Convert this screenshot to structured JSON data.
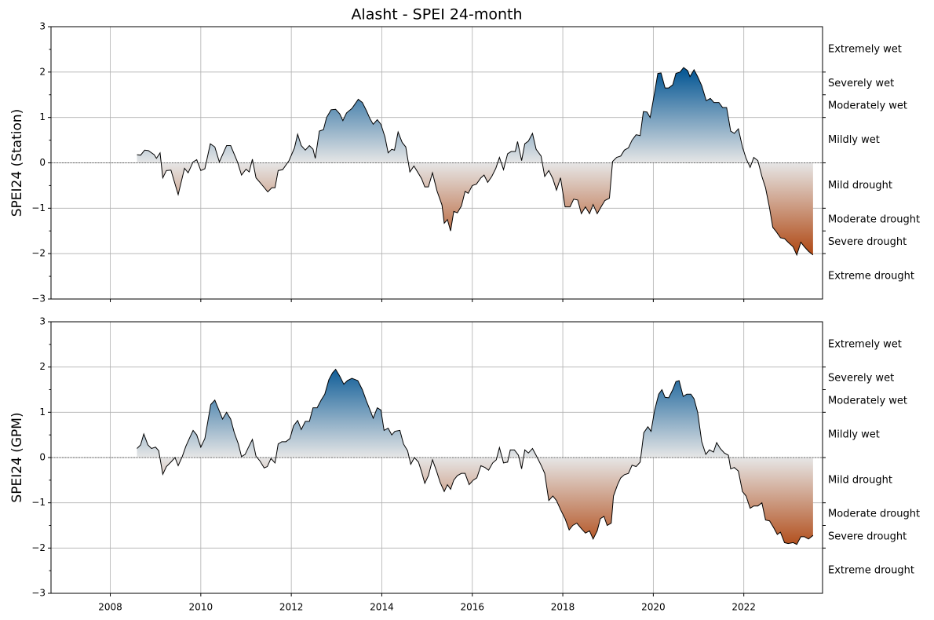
{
  "chart_data": [
    {
      "type": "area",
      "title": "Alasht - SPEI 24-month",
      "ylabel": "SPEI24 (Station)",
      "x": [
        2008.59,
        2008.67,
        2008.76,
        2008.84,
        2008.97,
        2009.02,
        2009.1,
        2009.16,
        2009.24,
        2009.34,
        2009.5,
        2009.64,
        2009.72,
        2009.83,
        2009.91,
        2010.0,
        2010.09,
        2010.21,
        2010.31,
        2010.41,
        2010.57,
        2010.66,
        2010.81,
        2010.9,
        2011.0,
        2011.07,
        2011.14,
        2011.22,
        2011.34,
        2011.48,
        2011.57,
        2011.64,
        2011.71,
        2011.81,
        2011.95,
        2012.07,
        2012.14,
        2012.22,
        2012.31,
        2012.4,
        2012.48,
        2012.53,
        2012.62,
        2012.71,
        2012.78,
        2012.88,
        2012.98,
        2013.07,
        2013.14,
        2013.22,
        2013.34,
        2013.48,
        2013.57,
        2013.66,
        2013.74,
        2013.81,
        2013.9,
        2013.98,
        2014.07,
        2014.14,
        2014.22,
        2014.28,
        2014.36,
        2014.45,
        2014.53,
        2014.62,
        2014.71,
        2014.79,
        2014.88,
        2014.95,
        2015.03,
        2015.12,
        2015.22,
        2015.33,
        2015.38,
        2015.45,
        2015.52,
        2015.59,
        2015.67,
        2015.76,
        2015.84,
        2015.91,
        2016.0,
        2016.09,
        2016.19,
        2016.26,
        2016.34,
        2016.43,
        2016.52,
        2016.6,
        2016.69,
        2016.78,
        2016.86,
        2016.95,
        2017.0,
        2017.09,
        2017.16,
        2017.24,
        2017.33,
        2017.41,
        2017.52,
        2017.6,
        2017.69,
        2017.78,
        2017.86,
        2017.95,
        2018.05,
        2018.16,
        2018.24,
        2018.33,
        2018.41,
        2018.5,
        2018.59,
        2018.67,
        2018.76,
        2018.84,
        2018.93,
        2019.03,
        2019.1,
        2019.19,
        2019.28,
        2019.36,
        2019.45,
        2019.53,
        2019.62,
        2019.71,
        2019.78,
        2019.86,
        2019.93,
        2020.02,
        2020.1,
        2020.17,
        2020.26,
        2020.34,
        2020.43,
        2020.5,
        2020.59,
        2020.67,
        2020.76,
        2020.81,
        2020.9,
        2020.98,
        2021.07,
        2021.17,
        2021.26,
        2021.34,
        2021.45,
        2021.53,
        2021.62,
        2021.71,
        2021.79,
        2021.88,
        2021.97,
        2022.05,
        2022.14,
        2022.22,
        2022.31,
        2022.4,
        2022.48,
        2022.57,
        2022.64,
        2022.72,
        2022.81,
        2022.9,
        2022.98,
        2023.09,
        2023.17,
        2023.26,
        2023.34,
        2023.43,
        2023.53
      ],
      "values": [
        0.18,
        0.17,
        0.28,
        0.27,
        0.18,
        0.1,
        0.22,
        -0.33,
        -0.17,
        -0.16,
        -0.7,
        -0.12,
        -0.22,
        0.02,
        0.07,
        -0.17,
        -0.13,
        0.42,
        0.35,
        0.02,
        0.38,
        0.38,
        0.02,
        -0.27,
        -0.14,
        -0.2,
        0.08,
        -0.33,
        -0.47,
        -0.64,
        -0.55,
        -0.55,
        -0.17,
        -0.15,
        0.05,
        0.33,
        0.63,
        0.38,
        0.28,
        0.38,
        0.3,
        0.1,
        0.7,
        0.73,
        1.0,
        1.17,
        1.18,
        1.08,
        0.93,
        1.1,
        1.2,
        1.4,
        1.33,
        1.15,
        0.97,
        0.85,
        0.95,
        0.85,
        0.57,
        0.22,
        0.3,
        0.28,
        0.68,
        0.45,
        0.35,
        -0.2,
        -0.07,
        -0.2,
        -0.35,
        -0.53,
        -0.53,
        -0.22,
        -0.62,
        -0.93,
        -1.33,
        -1.25,
        -1.5,
        -1.07,
        -1.1,
        -0.95,
        -0.63,
        -0.67,
        -0.5,
        -0.47,
        -0.33,
        -0.27,
        -0.43,
        -0.3,
        -0.12,
        0.12,
        -0.15,
        0.2,
        0.25,
        0.25,
        0.47,
        0.05,
        0.42,
        0.48,
        0.65,
        0.3,
        0.15,
        -0.3,
        -0.17,
        -0.35,
        -0.6,
        -0.33,
        -0.97,
        -0.97,
        -0.8,
        -0.82,
        -1.12,
        -0.97,
        -1.12,
        -0.92,
        -1.12,
        -0.98,
        -0.83,
        -0.78,
        0.03,
        0.12,
        0.15,
        0.28,
        0.33,
        0.5,
        0.62,
        0.6,
        1.13,
        1.12,
        1.0,
        1.5,
        1.97,
        1.98,
        1.65,
        1.65,
        1.72,
        1.97,
        2.0,
        2.1,
        2.03,
        1.9,
        2.05,
        1.9,
        1.7,
        1.37,
        1.42,
        1.33,
        1.33,
        1.22,
        1.22,
        0.7,
        0.65,
        0.75,
        0.35,
        0.1,
        -0.1,
        0.12,
        0.05,
        -0.3,
        -0.55,
        -1.0,
        -1.42,
        -1.52,
        -1.65,
        -1.67,
        -1.75,
        -1.85,
        -2.03,
        -1.75,
        -1.85,
        -1.95,
        -2.03
      ],
      "xlim": [
        2006.69,
        2023.74
      ],
      "xticks": [
        2008,
        2010,
        2012,
        2014,
        2016,
        2018,
        2020,
        2022
      ],
      "show_xtick_labels": false,
      "ylim": [
        -3,
        3
      ],
      "yticks": [
        {
          "value": -3,
          "label": "−3"
        },
        {
          "value": -2,
          "label": "−2"
        },
        {
          "value": -1,
          "label": "−1"
        },
        0,
        1,
        2,
        3
      ],
      "yminorticks": [
        -2.5,
        -1.5,
        -0.5,
        0.5,
        1.5,
        2.5
      ],
      "grid": true,
      "line_color": "#000000",
      "colors": {
        "wet": "#0a5a96",
        "neutral": "#e6e6e6",
        "dry": "#b04a16"
      },
      "classes": [
        {
          "label": "Extremely wet",
          "from": 2,
          "to": 3
        },
        {
          "label": "Severely wet",
          "from": 1.5,
          "to": 2
        },
        {
          "label": "Moderately wet",
          "from": 1,
          "to": 1.5
        },
        {
          "label": "Mildly wet",
          "from": 0,
          "to": 1
        },
        {
          "label": "Mild drought",
          "from": -1,
          "to": 0
        },
        {
          "label": "Moderate drought",
          "from": -1.5,
          "to": -1
        },
        {
          "label": "Severe drought",
          "from": -2,
          "to": -1.5
        },
        {
          "label": "Extreme drought",
          "from": -3,
          "to": -2
        }
      ]
    },
    {
      "type": "area",
      "ylabel": "SPEI24 (GPM)",
      "x": [
        2008.59,
        2008.67,
        2008.74,
        2008.83,
        2008.91,
        2009.0,
        2009.07,
        2009.16,
        2009.24,
        2009.34,
        2009.43,
        2009.5,
        2009.59,
        2009.67,
        2009.76,
        2009.83,
        2009.91,
        2010.0,
        2010.09,
        2010.22,
        2010.31,
        2010.4,
        2010.48,
        2010.57,
        2010.66,
        2010.74,
        2010.83,
        2010.9,
        2010.98,
        2011.05,
        2011.14,
        2011.22,
        2011.31,
        2011.4,
        2011.47,
        2011.55,
        2011.64,
        2011.71,
        2011.79,
        2011.88,
        2011.97,
        2012.05,
        2012.14,
        2012.22,
        2012.31,
        2012.4,
        2012.48,
        2012.57,
        2012.66,
        2012.74,
        2012.83,
        2012.91,
        2012.98,
        2013.07,
        2013.16,
        2013.24,
        2013.34,
        2013.47,
        2013.57,
        2013.66,
        2013.74,
        2013.81,
        2013.9,
        2013.98,
        2014.05,
        2014.14,
        2014.22,
        2014.29,
        2014.4,
        2014.48,
        2014.57,
        2014.64,
        2014.72,
        2014.81,
        2014.88,
        2014.95,
        2015.03,
        2015.12,
        2015.21,
        2015.29,
        2015.38,
        2015.45,
        2015.52,
        2015.59,
        2015.67,
        2015.76,
        2015.84,
        2015.93,
        2016.02,
        2016.1,
        2016.19,
        2016.28,
        2016.36,
        2016.45,
        2016.53,
        2016.6,
        2016.69,
        2016.78,
        2016.84,
        2016.93,
        2017.02,
        2017.09,
        2017.16,
        2017.24,
        2017.33,
        2017.41,
        2017.52,
        2017.6,
        2017.69,
        2017.78,
        2017.86,
        2017.95,
        2018.05,
        2018.14,
        2018.22,
        2018.31,
        2018.41,
        2018.5,
        2018.59,
        2018.67,
        2018.76,
        2018.83,
        2018.91,
        2018.98,
        2019.07,
        2019.12,
        2019.21,
        2019.28,
        2019.36,
        2019.45,
        2019.53,
        2019.62,
        2019.71,
        2019.79,
        2019.88,
        2019.95,
        2020.03,
        2020.12,
        2020.19,
        2020.26,
        2020.34,
        2020.43,
        2020.5,
        2020.57,
        2020.66,
        2020.74,
        2020.83,
        2020.9,
        2020.98,
        2021.07,
        2021.16,
        2021.24,
        2021.33,
        2021.4,
        2021.48,
        2021.57,
        2021.66,
        2021.71,
        2021.79,
        2021.88,
        2021.97,
        2022.05,
        2022.14,
        2022.22,
        2022.31,
        2022.4,
        2022.48,
        2022.57,
        2022.66,
        2022.74,
        2022.81,
        2022.9,
        2022.98,
        2023.09,
        2023.17,
        2023.26,
        2023.34,
        2023.43,
        2023.53
      ],
      "values": [
        0.2,
        0.28,
        0.52,
        0.28,
        0.2,
        0.23,
        0.15,
        -0.37,
        -0.2,
        -0.1,
        0.0,
        -0.18,
        0.02,
        0.25,
        0.45,
        0.6,
        0.5,
        0.23,
        0.42,
        1.17,
        1.27,
        1.05,
        0.85,
        1.0,
        0.85,
        0.55,
        0.3,
        0.02,
        0.07,
        0.22,
        0.4,
        0.03,
        -0.08,
        -0.23,
        -0.2,
        -0.02,
        -0.12,
        0.3,
        0.35,
        0.35,
        0.42,
        0.7,
        0.82,
        0.62,
        0.8,
        0.8,
        1.1,
        1.1,
        1.27,
        1.4,
        1.72,
        1.87,
        1.95,
        1.8,
        1.62,
        1.7,
        1.75,
        1.7,
        1.5,
        1.25,
        1.05,
        0.87,
        1.1,
        1.05,
        0.6,
        0.65,
        0.5,
        0.58,
        0.6,
        0.3,
        0.15,
        -0.15,
        0.0,
        -0.1,
        -0.32,
        -0.57,
        -0.4,
        -0.05,
        -0.3,
        -0.55,
        -0.75,
        -0.6,
        -0.7,
        -0.5,
        -0.4,
        -0.35,
        -0.35,
        -0.6,
        -0.5,
        -0.45,
        -0.18,
        -0.22,
        -0.28,
        -0.12,
        -0.05,
        0.22,
        -0.12,
        -0.1,
        0.17,
        0.17,
        0.05,
        -0.25,
        0.17,
        0.1,
        0.2,
        0.05,
        -0.17,
        -0.35,
        -0.95,
        -0.85,
        -0.95,
        -1.15,
        -1.35,
        -1.6,
        -1.5,
        -1.45,
        -1.57,
        -1.67,
        -1.62,
        -1.8,
        -1.62,
        -1.35,
        -1.3,
        -1.5,
        -1.45,
        -0.85,
        -0.6,
        -0.45,
        -0.38,
        -0.35,
        -0.17,
        -0.2,
        -0.1,
        0.55,
        0.68,
        0.58,
        1.05,
        1.4,
        1.5,
        1.33,
        1.32,
        1.5,
        1.68,
        1.7,
        1.35,
        1.4,
        1.4,
        1.3,
        1.0,
        0.35,
        0.07,
        0.17,
        0.12,
        0.33,
        0.2,
        0.1,
        0.05,
        -0.25,
        -0.22,
        -0.3,
        -0.75,
        -0.85,
        -1.12,
        -1.07,
        -1.07,
        -1.0,
        -1.38,
        -1.4,
        -1.55,
        -1.7,
        -1.65,
        -1.88,
        -1.9,
        -1.88,
        -1.92,
        -1.75,
        -1.75,
        -1.8,
        -1.72
      ],
      "xlim": [
        2006.69,
        2023.74
      ],
      "xticks": [
        2008,
        2010,
        2012,
        2014,
        2016,
        2018,
        2020,
        2022
      ],
      "show_xtick_labels": true,
      "ylim": [
        -3,
        3
      ],
      "yticks": [
        {
          "value": -3,
          "label": "−3"
        },
        {
          "value": -2,
          "label": "−2"
        },
        {
          "value": -1,
          "label": "−1"
        },
        0,
        1,
        2,
        3
      ],
      "yminorticks": [
        -2.5,
        -1.5,
        -0.5,
        0.5,
        1.5,
        2.5
      ],
      "grid": true,
      "line_color": "#000000",
      "colors": {
        "wet": "#0a5a96",
        "neutral": "#e6e6e6",
        "dry": "#b04a16"
      },
      "classes": [
        {
          "label": "Extremely wet",
          "from": 2,
          "to": 3
        },
        {
          "label": "Severely wet",
          "from": 1.5,
          "to": 2
        },
        {
          "label": "Moderately wet",
          "from": 1,
          "to": 1.5
        },
        {
          "label": "Mildly wet",
          "from": 0,
          "to": 1
        },
        {
          "label": "Mild drought",
          "from": -1,
          "to": 0
        },
        {
          "label": "Moderate drought",
          "from": -1.5,
          "to": -1
        },
        {
          "label": "Severe drought",
          "from": -2,
          "to": -1.5
        },
        {
          "label": "Extreme drought",
          "from": -3,
          "to": -2
        }
      ]
    }
  ]
}
